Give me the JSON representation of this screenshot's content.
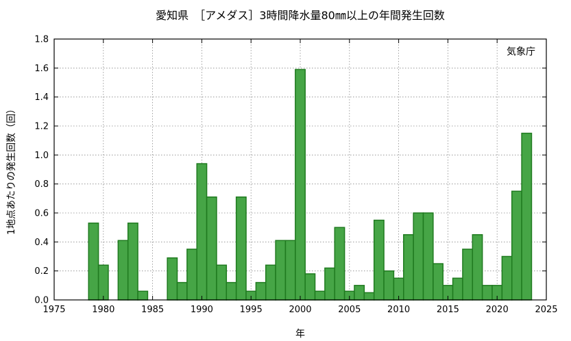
{
  "chart_data": {
    "type": "bar",
    "title": "愛知県　［アメダス］3時間降水量80㎜以上の年間発生回数",
    "xlabel": "年",
    "ylabel": "1地点あたりの発生回数（回）",
    "source_note": "気象庁",
    "xlim": [
      1975,
      2025
    ],
    "ylim": [
      0,
      1.8
    ],
    "xticks": [
      1975,
      1980,
      1985,
      1990,
      1995,
      2000,
      2005,
      2010,
      2015,
      2020,
      2025
    ],
    "yticks": [
      0.0,
      0.2,
      0.4,
      0.6,
      0.8,
      1.0,
      1.2,
      1.4,
      1.6,
      1.8
    ],
    "xtick_labels": [
      "1975",
      "1980",
      "1985",
      "1990",
      "1995",
      "2000",
      "2005",
      "2010",
      "2015",
      "2020",
      "2025"
    ],
    "ytick_labels": [
      "0.0",
      "0.2",
      "0.4",
      "0.6",
      "0.8",
      "1.0",
      "1.2",
      "1.4",
      "1.6",
      "1.8"
    ],
    "grid": true,
    "bar_color": "#46a546",
    "bar_edge_color": "#1f7a1f",
    "years": [
      1979,
      1980,
      1981,
      1982,
      1983,
      1984,
      1985,
      1986,
      1987,
      1988,
      1989,
      1990,
      1991,
      1992,
      1993,
      1994,
      1995,
      1996,
      1997,
      1998,
      1999,
      2000,
      2001,
      2002,
      2003,
      2004,
      2005,
      2006,
      2007,
      2008,
      2009,
      2010,
      2011,
      2012,
      2013,
      2014,
      2015,
      2016,
      2017,
      2018,
      2019,
      2020,
      2021,
      2022,
      2023
    ],
    "values": [
      0.53,
      0.24,
      0.0,
      0.41,
      0.53,
      0.06,
      0.0,
      0.0,
      0.29,
      0.12,
      0.35,
      0.94,
      0.71,
      0.24,
      0.12,
      0.71,
      0.06,
      0.12,
      0.24,
      0.41,
      0.41,
      1.59,
      0.18,
      0.06,
      0.22,
      0.5,
      0.06,
      0.1,
      0.05,
      0.55,
      0.2,
      0.15,
      0.45,
      0.6,
      0.6,
      0.25,
      0.1,
      0.15,
      0.35,
      0.45,
      0.1,
      0.1,
      0.3,
      0.75,
      1.15
    ]
  }
}
